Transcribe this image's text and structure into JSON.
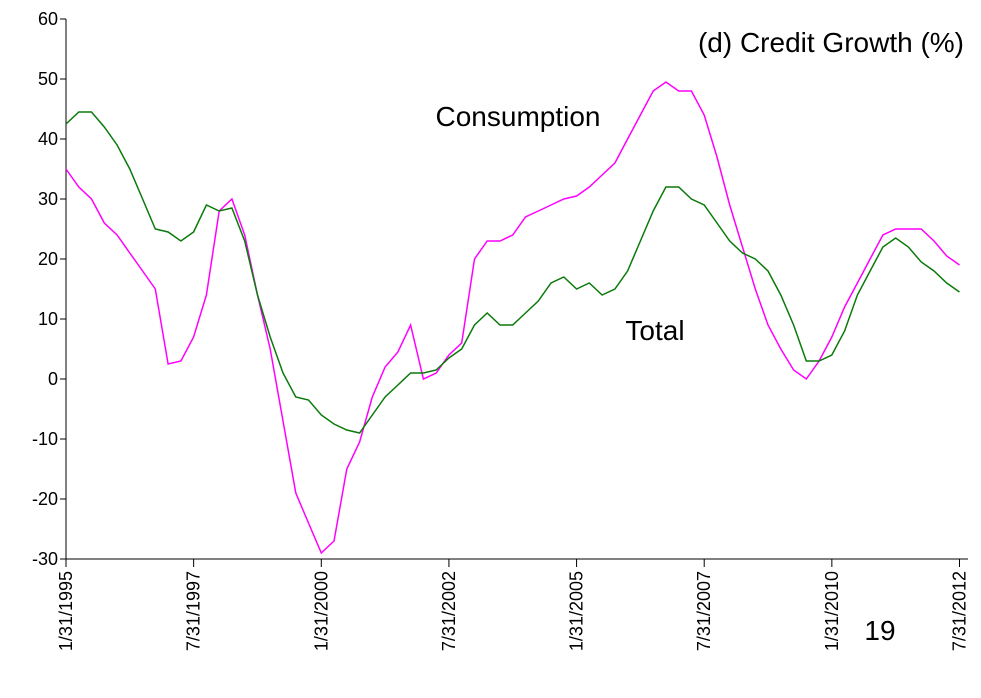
{
  "chart_data": {
    "type": "line",
    "title": "(d) Credit Growth (%)",
    "annotations": [
      {
        "text": "Consumption",
        "color": "#ff00ff"
      },
      {
        "text": "Total",
        "color": "#0a7a0a"
      },
      {
        "text": "19",
        "color": "#0a7a0a"
      }
    ],
    "x": [
      "1995-01",
      "1995-04",
      "1995-07",
      "1995-10",
      "1996-01",
      "1996-04",
      "1996-07",
      "1996-10",
      "1997-01",
      "1997-04",
      "1997-07",
      "1997-10",
      "1998-01",
      "1998-04",
      "1998-07",
      "1998-10",
      "1999-01",
      "1999-04",
      "1999-07",
      "1999-10",
      "2000-01",
      "2000-04",
      "2000-07",
      "2000-10",
      "2001-01",
      "2001-04",
      "2001-07",
      "2001-10",
      "2002-01",
      "2002-04",
      "2002-07",
      "2002-10",
      "2003-01",
      "2003-04",
      "2003-07",
      "2003-10",
      "2004-01",
      "2004-04",
      "2004-07",
      "2004-10",
      "2005-01",
      "2005-04",
      "2005-07",
      "2005-10",
      "2006-01",
      "2006-04",
      "2006-07",
      "2006-10",
      "2007-01",
      "2007-04",
      "2007-07",
      "2007-10",
      "2008-01",
      "2008-04",
      "2008-07",
      "2008-10",
      "2009-01",
      "2009-04",
      "2009-07",
      "2009-10",
      "2010-01",
      "2010-04",
      "2010-07",
      "2010-10",
      "2011-01",
      "2011-04",
      "2011-07",
      "2011-10",
      "2012-01",
      "2012-04",
      "2012-07"
    ],
    "series": [
      {
        "name": "Consumption",
        "color": "#ff00ff",
        "values": [
          35,
          32,
          30,
          26,
          24,
          21,
          18,
          15,
          2.5,
          3,
          7,
          14,
          28,
          30,
          24,
          14,
          5,
          -7,
          -19,
          -24,
          -29,
          -27,
          -15,
          -10.5,
          -3,
          2,
          4.5,
          9,
          0,
          1,
          4,
          6,
          20,
          23,
          23,
          24,
          27,
          28,
          29,
          30,
          30.5,
          32,
          34,
          36,
          40,
          44,
          48,
          49.5,
          48,
          48,
          44,
          37,
          29,
          22,
          15,
          9,
          5,
          1.5,
          0,
          3,
          7,
          12,
          16,
          20,
          24,
          25,
          25,
          25,
          23,
          20.5,
          19
        ]
      },
      {
        "name": "Total",
        "color": "#0a7a0a",
        "values": [
          42.5,
          44.5,
          44.5,
          42,
          39,
          35,
          30,
          25,
          24.5,
          23,
          24.5,
          29,
          28,
          28.5,
          23,
          14,
          7,
          1,
          -3,
          -3.5,
          -6,
          -7.5,
          -8.5,
          -9,
          -6,
          -3,
          -1,
          1,
          1,
          1.5,
          3.5,
          5,
          9,
          11,
          9,
          9,
          11,
          13,
          16,
          17,
          15,
          16,
          14,
          15,
          18,
          23,
          28,
          32,
          32,
          30,
          29,
          26,
          23,
          21,
          20,
          18,
          14,
          9,
          3,
          3,
          4,
          8,
          14,
          18,
          22,
          23.5,
          22,
          19.5,
          18,
          16,
          14.5
        ]
      }
    ],
    "xlim": [
      "1995-01",
      "2012-09"
    ],
    "xticks": [
      {
        "value": "1995-01",
        "label": "1/31/1995"
      },
      {
        "value": "1997-07",
        "label": "7/31/1997"
      },
      {
        "value": "2000-01",
        "label": "1/31/2000"
      },
      {
        "value": "2002-07",
        "label": "7/31/2002"
      },
      {
        "value": "2005-01",
        "label": "1/31/2005"
      },
      {
        "value": "2007-07",
        "label": "7/31/2007"
      },
      {
        "value": "2010-01",
        "label": "1/31/2010"
      },
      {
        "value": "2012-07",
        "label": "7/31/2012"
      }
    ],
    "ylim": [
      -30,
      60
    ],
    "yticks": [
      -30,
      -20,
      -10,
      0,
      10,
      20,
      30,
      40,
      50,
      60
    ]
  }
}
